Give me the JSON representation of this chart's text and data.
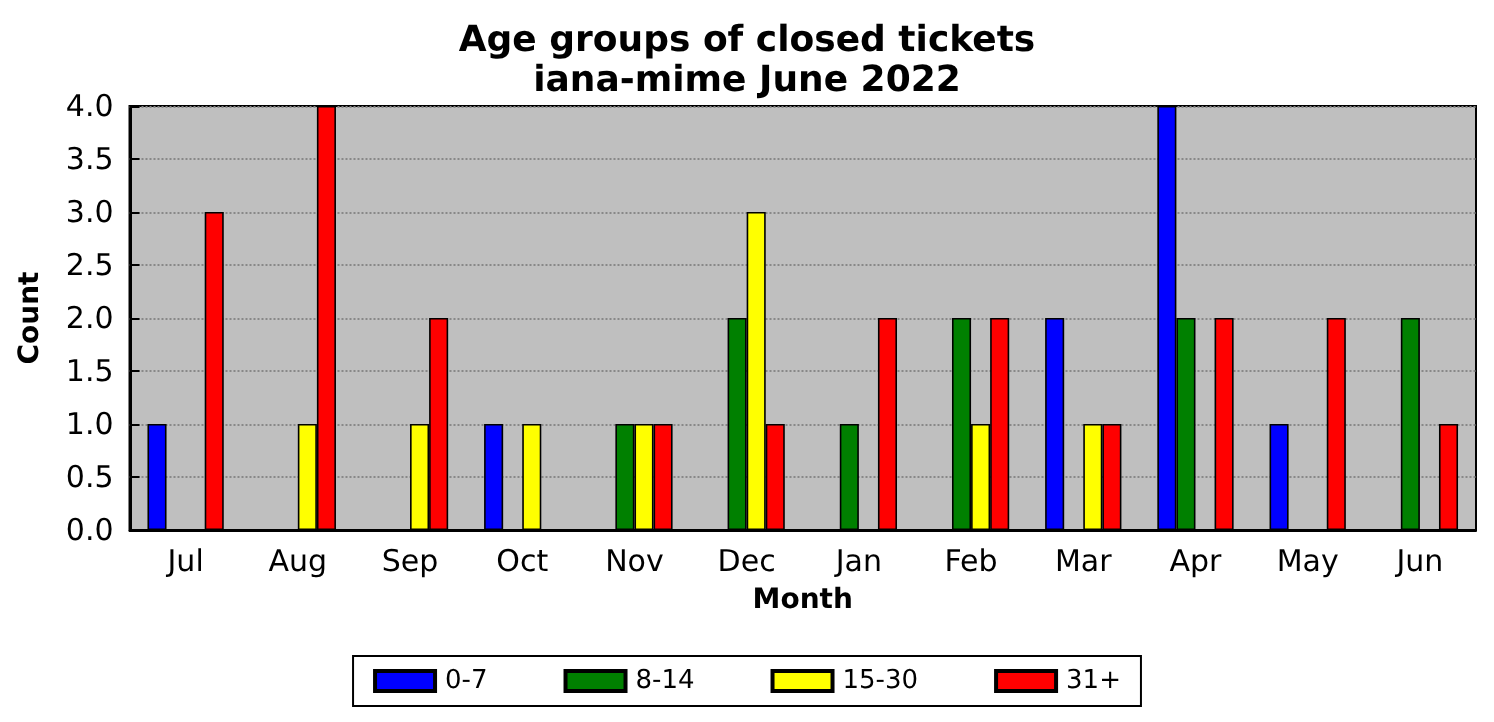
{
  "chart_data": {
    "type": "bar",
    "title": "Age groups of closed tickets",
    "subtitle": "iana-mime June 2022",
    "xlabel": "Month",
    "ylabel": "Count",
    "categories": [
      "Jul",
      "Aug",
      "Sep",
      "Oct",
      "Nov",
      "Dec",
      "Jan",
      "Feb",
      "Mar",
      "Apr",
      "May",
      "Jun"
    ],
    "series": [
      {
        "name": "0-7",
        "color": "#0000ff",
        "values": [
          1,
          0,
          0,
          1,
          0,
          0,
          0,
          0,
          2,
          4,
          1,
          0
        ]
      },
      {
        "name": "8-14",
        "color": "#008000",
        "values": [
          0,
          0,
          0,
          0,
          1,
          2,
          1,
          2,
          0,
          2,
          0,
          2
        ]
      },
      {
        "name": "15-30",
        "color": "#ffff00",
        "values": [
          0,
          1,
          1,
          1,
          1,
          3,
          0,
          1,
          1,
          0,
          0,
          0
        ]
      },
      {
        "name": "31+",
        "color": "#ff0000",
        "values": [
          3,
          4,
          2,
          0,
          1,
          1,
          2,
          2,
          1,
          2,
          2,
          1
        ]
      }
    ],
    "ylim": [
      0,
      4
    ],
    "yticks": [
      {
        "value": 0,
        "label": "0.0"
      },
      {
        "value": 0.5,
        "label": "0.5"
      },
      {
        "value": 1,
        "label": "1.0"
      },
      {
        "value": 1.5,
        "label": "1.5"
      },
      {
        "value": 2,
        "label": "2.0"
      },
      {
        "value": 2.5,
        "label": "2.5"
      },
      {
        "value": 3,
        "label": "3.0"
      },
      {
        "value": 3.5,
        "label": "3.5"
      },
      {
        "value": 4,
        "label": "4.0"
      }
    ],
    "grid": "y",
    "legend": "bottom"
  }
}
